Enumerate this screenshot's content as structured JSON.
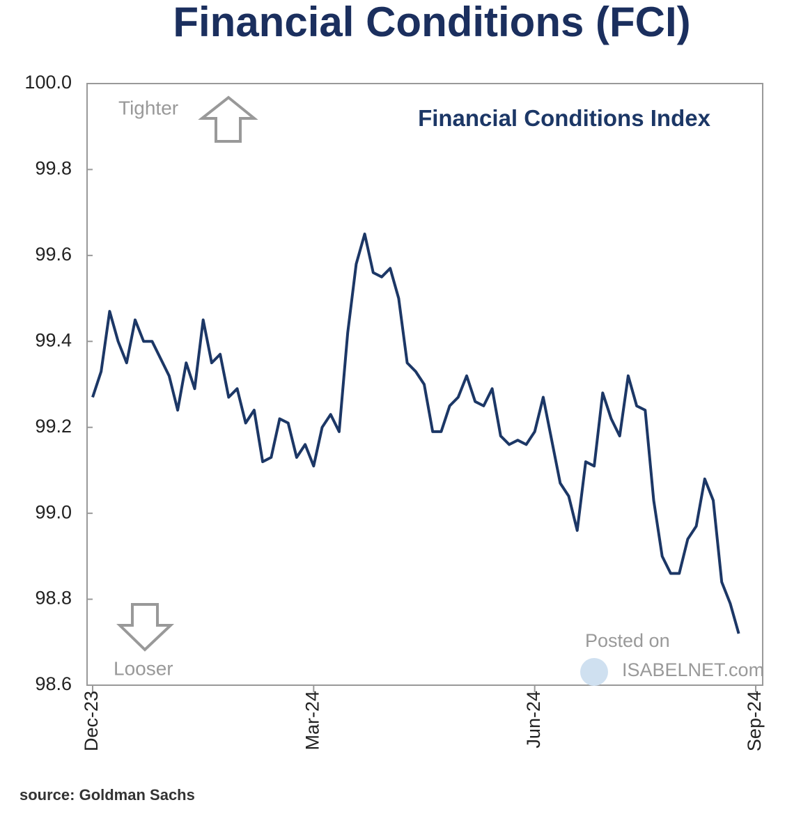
{
  "chart_data": {
    "type": "line",
    "title": "Financial Conditions (FCI)",
    "annotations": {
      "tighter": "Tighter",
      "looser": "Looser",
      "posted": "Posted on",
      "site": "ISABELNET.com"
    },
    "source": "source: Goldman Sachs",
    "categories": [
      "Dec-23",
      null,
      null,
      null,
      null,
      null,
      null,
      null,
      null,
      null,
      null,
      null,
      null,
      null,
      null,
      null,
      null,
      null,
      null,
      null,
      null,
      null,
      null,
      null,
      null,
      null,
      "Mar-24",
      null,
      null,
      null,
      null,
      null,
      null,
      null,
      null,
      null,
      null,
      null,
      null,
      null,
      null,
      null,
      null,
      null,
      null,
      null,
      null,
      null,
      null,
      null,
      null,
      null,
      "Jun-24",
      null,
      null,
      null,
      null,
      null,
      null,
      null,
      null,
      null,
      null,
      null,
      null,
      null,
      null,
      null,
      null,
      null,
      null,
      null,
      null,
      null,
      null,
      null,
      null,
      null,
      "Sep-24"
    ],
    "series": [
      {
        "name": "Financial Conditions Index",
        "color": "#1c3766",
        "values": [
          99.27,
          99.33,
          99.47,
          99.4,
          99.35,
          99.45,
          99.4,
          99.4,
          99.36,
          99.32,
          99.24,
          99.35,
          99.29,
          99.45,
          99.35,
          99.37,
          99.27,
          99.29,
          99.21,
          99.24,
          99.12,
          99.13,
          99.22,
          99.21,
          99.13,
          99.16,
          99.11,
          99.2,
          99.23,
          99.19,
          99.42,
          99.58,
          99.65,
          99.56,
          99.55,
          99.57,
          99.5,
          99.35,
          99.33,
          99.3,
          99.19,
          99.19,
          99.25,
          99.27,
          99.32,
          99.26,
          99.25,
          99.29,
          99.18,
          99.16,
          99.17,
          99.16,
          99.19,
          99.27,
          99.17,
          99.07,
          99.04,
          98.96,
          99.12,
          99.11,
          99.28,
          99.22,
          99.18,
          99.32,
          99.25,
          99.24,
          99.03,
          98.9,
          98.86,
          98.86,
          98.94,
          98.97,
          99.08,
          99.03,
          98.84,
          98.79,
          98.72,
          null,
          null
        ]
      }
    ],
    "ylim": [
      98.6,
      100.0
    ],
    "yticks": [
      {
        "value": 100.0,
        "label": "100.0"
      },
      99.8,
      99.6,
      99.4,
      99.2,
      {
        "value": 99.0,
        "label": "99.0"
      },
      98.8,
      98.6
    ],
    "grid": false
  }
}
